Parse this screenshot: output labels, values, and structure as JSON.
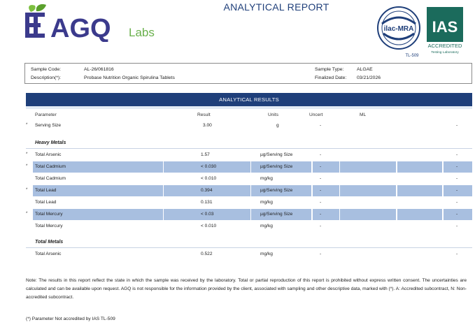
{
  "header": {
    "brand": "AGQ",
    "brand_sub": "Labs",
    "title": "ANALYTICAL REPORT",
    "ilac_text": "ilac-MRA",
    "ilac_code": "TL-509",
    "ias_text": "IAS",
    "ias_line1": "ACCREDITED",
    "ias_line2": "Testing Laboratory",
    "colors": {
      "navy": "#1f3f7a",
      "green": "#6ab04c",
      "purple": "#3b3a8c"
    }
  },
  "info": {
    "sample_code_label": "Sample Code:",
    "sample_code": "AL-26/061816",
    "description_label": "Description(*):",
    "description": "Probase Nutrition Organic Spirulina Tablets",
    "sample_type_label": "Sample Type:",
    "sample_type": "ALGAE",
    "finalized_label": "Finalized Date:",
    "finalized": "03/21/2026"
  },
  "results": {
    "title": "ANALYTICAL RESULTS",
    "columns": {
      "parameter": "Parameter",
      "result": "Result",
      "units": "Units",
      "uncert": "Uncert",
      "ml": "ML"
    },
    "serving": {
      "bullet": "*",
      "name": "Serving Size",
      "result": "3.00",
      "units": "g",
      "uncert": "-",
      "last": "-"
    },
    "heavy_metals_title": "Heavy Metals",
    "heavy_metals": [
      {
        "bullet": "*",
        "name": "Total Arsenic",
        "result": "1.57",
        "units": "µg/Serving Size",
        "uncert": "-",
        "last": "-",
        "highlight": false
      },
      {
        "bullet": "*",
        "name": "Total Cadmium",
        "result": "< 0.030",
        "units": "µg/Serving Size",
        "uncert": "-",
        "last": "-",
        "highlight": true
      },
      {
        "bullet": "",
        "name": "Total Cadmium",
        "result": "< 0.010",
        "units": "mg/kg",
        "uncert": "-",
        "last": "-",
        "highlight": false
      },
      {
        "bullet": "*",
        "name": "Total Lead",
        "result": "0.394",
        "units": "µg/Serving Size",
        "uncert": "-",
        "last": "-",
        "highlight": true
      },
      {
        "bullet": "",
        "name": "Total Lead",
        "result": "0.131",
        "units": "mg/kg",
        "uncert": "-",
        "last": "-",
        "highlight": false
      },
      {
        "bullet": "*",
        "name": "Total Mercury",
        "result": "< 0.03",
        "units": "µg/Serving Size",
        "uncert": "-",
        "last": "-",
        "highlight": true
      },
      {
        "bullet": "",
        "name": "Total Mercury",
        "result": "< 0.010",
        "units": "mg/kg",
        "uncert": "-",
        "last": "-",
        "highlight": false
      }
    ],
    "total_metals_title": "Total Metals",
    "total_metals": [
      {
        "bullet": "",
        "name": "Total Arsenic",
        "result": "0.522",
        "units": "mg/kg",
        "uncert": "-",
        "last": "-",
        "highlight": false
      }
    ]
  },
  "note": "Note: The results in this report reflect the state in which the sample was received by the laboratory. Total or partial reproduction of this report is prohibited without express written consent. The uncertainties are calculated and can be available upon request. AGQ is not responsible for the information provided by the client, associated with sampling and other descriptive data, marked with (*). A: Accredited subcontract, N: Non-accredited subcontract.",
  "footnote": "(*) Parameter Not accredited by IAS TL-509"
}
